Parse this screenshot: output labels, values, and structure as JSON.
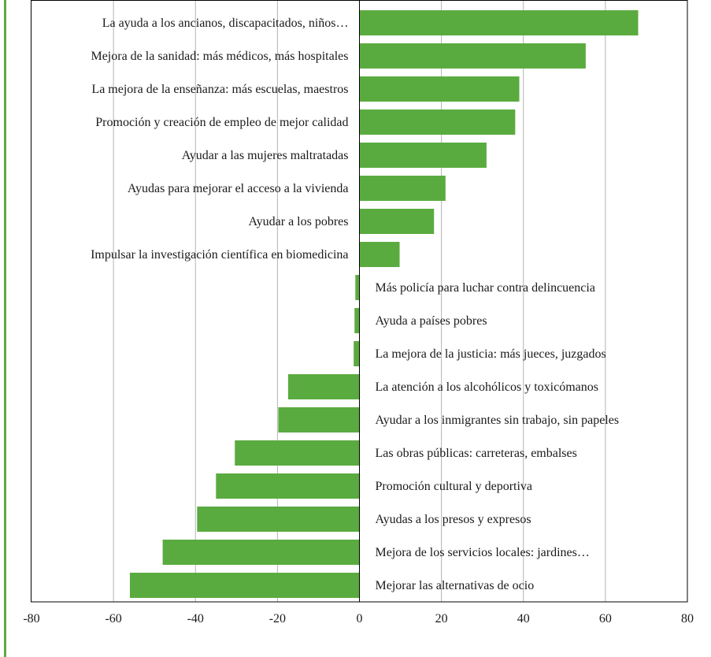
{
  "chart_data": {
    "type": "bar",
    "orientation": "horizontal",
    "categories": [
      "La ayuda a los ancianos, discapacitados, niños…",
      "Mejora de la sanidad: más médicos, más hospitales",
      "La mejora de la enseñanza: más escuelas, maestros",
      "Promoción y creación de empleo de mejor calidad",
      "Ayudar a las mujeres maltratadas",
      "Ayudas para mejorar el acceso a la vivienda",
      "Ayudar a los pobres",
      "Impulsar la investigación científica en biomedicina",
      "Más policía para luchar contra delincuencia",
      "Ayuda a países pobres",
      "La mejora de la justicia: más jueces, juzgados",
      "La atención a los alcohólicos y toxicómanos",
      "Ayudar a los inmigrantes sin trabajo, sin papeles",
      "Las obras públicas: carreteras, embalses",
      "Promoción cultural y deportiva",
      "Ayudas a los presos y expresos",
      "Mejora de los servicios locales: jardines…",
      "Mejorar las alternativas de ocio"
    ],
    "values": [
      68,
      55.2,
      39,
      38,
      31,
      21,
      18.2,
      9.8,
      -1,
      -1.2,
      -1.4,
      -17.4,
      -19.8,
      -30.4,
      -35,
      -39.6,
      -48,
      -56
    ],
    "xlim": [
      -80,
      80
    ],
    "xticks": [
      "-80",
      "-60",
      "-40",
      "-20",
      "0",
      "20",
      "40",
      "60",
      "80"
    ],
    "xtick_values": [
      -80,
      -60,
      -40,
      -20,
      0,
      20,
      40,
      60,
      80
    ],
    "grid": true,
    "title": "",
    "xlabel": "",
    "ylabel": "",
    "colors": {
      "bar": "#5aab3f",
      "grid": "#b3b3b3",
      "axis": "#000000",
      "frame_left_accent": "#5aab3f"
    }
  }
}
